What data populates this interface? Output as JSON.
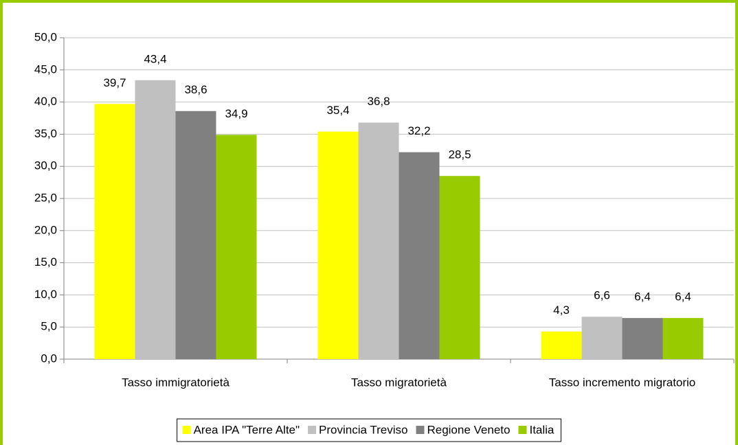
{
  "chart_data": {
    "type": "bar",
    "categories": [
      "Tasso immigratorietà",
      "Tasso migratorietà",
      "Tasso incremento migratorio"
    ],
    "series": [
      {
        "name": "Area IPA \"Terre Alte\"",
        "color": "#ffff00",
        "values": [
          39.7,
          35.4,
          4.3
        ],
        "value_labels": [
          "39,7",
          "35,4",
          "4,3"
        ]
      },
      {
        "name": "Provincia Treviso",
        "color": "#c0c0c0",
        "values": [
          43.4,
          36.8,
          6.6
        ],
        "value_labels": [
          "43,4",
          "36,8",
          "6,6"
        ]
      },
      {
        "name": "Regione Veneto",
        "color": "#808080",
        "values": [
          38.6,
          32.2,
          6.4
        ],
        "value_labels": [
          "38,6",
          "32,2",
          "6,4"
        ]
      },
      {
        "name": "Italia",
        "color": "#99cc00",
        "values": [
          34.9,
          28.5,
          6.4
        ],
        "value_labels": [
          "34,9",
          "28,5",
          "6,4"
        ]
      }
    ],
    "ylim": [
      0,
      50
    ],
    "yticks": [
      {
        "value": 0,
        "label": "0,0"
      },
      {
        "value": 5,
        "label": "5,0"
      },
      {
        "value": 10,
        "label": "10,0"
      },
      {
        "value": 15,
        "label": "15,0"
      },
      {
        "value": 20,
        "label": "20,0"
      },
      {
        "value": 25,
        "label": "25,0"
      },
      {
        "value": 30,
        "label": "30,0"
      },
      {
        "value": 35,
        "label": "35,0"
      },
      {
        "value": 40,
        "label": "40,0"
      },
      {
        "value": 45,
        "label": "45,0"
      },
      {
        "value": 50,
        "label": "50,0"
      }
    ],
    "grid": true,
    "legend": "bottom"
  }
}
